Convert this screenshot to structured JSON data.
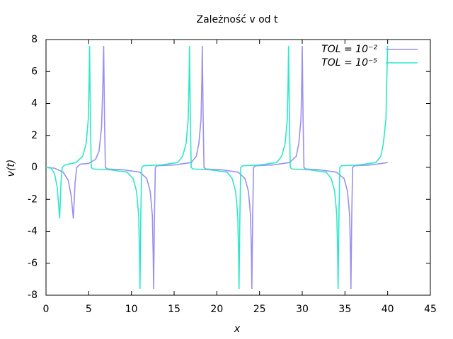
{
  "chart_data": {
    "type": "line",
    "title": "Zależność v od t",
    "xlabel": "x",
    "ylabel": "v(t)",
    "xlim": [
      0,
      45
    ],
    "ylim": [
      -8,
      8
    ],
    "xticks": [
      0,
      5,
      10,
      15,
      20,
      25,
      30,
      35,
      40,
      45
    ],
    "yticks": [
      -8,
      -6,
      -4,
      -2,
      0,
      2,
      4,
      6,
      8
    ],
    "legend": "top-right",
    "series": [
      {
        "name": "TOL = 10⁻²",
        "color": "#9b8ff0",
        "x": [
          0,
          1,
          2,
          2.6,
          2.95,
          3.2,
          3.4,
          3.6,
          4,
          5,
          5.8,
          6.2,
          6.5,
          6.65,
          6.75,
          6.85,
          6.95,
          7.2,
          9,
          11,
          11.8,
          12.2,
          12.45,
          12.55,
          12.6,
          12.7,
          12.8,
          13,
          15,
          17,
          17.6,
          17.9,
          18.15,
          18.25,
          18.3,
          18.4,
          18.5,
          18.7,
          20.5,
          22.5,
          23.3,
          23.7,
          23.95,
          24.05,
          24.1,
          24.2,
          24.3,
          24.5,
          26.5,
          28.5,
          29.3,
          29.6,
          29.85,
          29.95,
          30,
          30.1,
          30.2,
          30.4,
          32,
          34,
          34.9,
          35.3,
          35.55,
          35.65,
          35.7,
          35.8,
          35.9,
          36.1,
          38,
          40
        ],
        "values": [
          0,
          -0.05,
          -0.3,
          -0.8,
          -1.8,
          -3.2,
          -1,
          0,
          0.2,
          0.25,
          0.5,
          1,
          2.5,
          5,
          7.6,
          3,
          0,
          -0.1,
          -0.15,
          -0.3,
          -0.7,
          -1.5,
          -3,
          -5.5,
          -7.6,
          -3,
          0,
          0.1,
          0.15,
          0.3,
          0.7,
          1.5,
          3,
          5.5,
          7.6,
          3,
          0,
          -0.1,
          -0.15,
          -0.3,
          -0.7,
          -1.5,
          -3,
          -5.5,
          -7.6,
          -3,
          0,
          0.1,
          0.15,
          0.3,
          0.7,
          1.5,
          3,
          5.5,
          7.6,
          3,
          0,
          -0.1,
          -0.15,
          -0.3,
          -0.7,
          -1.5,
          -3,
          -5.5,
          -7.6,
          -3,
          0,
          0.1,
          0.15,
          0.3
        ]
      },
      {
        "name": "TOL = 10⁻⁵",
        "color": "#2de8c8",
        "x": [
          0,
          0.6,
          1,
          1.3,
          1.5,
          1.6,
          1.75,
          1.9,
          2.2,
          3.5,
          4.3,
          4.7,
          4.95,
          5.05,
          5.1,
          5.2,
          5.3,
          5.5,
          7.5,
          9.5,
          10.2,
          10.6,
          10.85,
          10.95,
          11,
          11.1,
          11.2,
          11.4,
          13.4,
          15.4,
          16,
          16.4,
          16.65,
          16.75,
          16.8,
          16.9,
          17,
          17.2,
          19.2,
          21.2,
          21.8,
          22.2,
          22.45,
          22.55,
          22.6,
          22.7,
          22.8,
          23,
          25,
          27,
          27.6,
          28,
          28.25,
          28.35,
          28.4,
          28.5,
          28.6,
          28.8,
          30.8,
          32.8,
          33.4,
          33.8,
          34.05,
          34.15,
          34.2,
          34.3,
          34.4,
          34.6,
          36.6,
          38.6,
          39.2,
          39.5,
          39.8,
          39.9,
          40
        ],
        "values": [
          0,
          -0.05,
          -0.4,
          -1.2,
          -2.5,
          -3.2,
          -1,
          0,
          0.15,
          0.3,
          0.7,
          1.5,
          3,
          5.5,
          7.6,
          3,
          0,
          -0.1,
          -0.15,
          -0.3,
          -0.7,
          -1.5,
          -3,
          -5.5,
          -7.6,
          -3,
          0,
          0.1,
          0.15,
          0.3,
          0.7,
          1.5,
          3,
          5.5,
          7.6,
          3,
          0,
          -0.1,
          -0.15,
          -0.3,
          -0.7,
          -1.5,
          -3,
          -5.5,
          -7.6,
          -3,
          0,
          0.1,
          0.15,
          0.3,
          0.7,
          1.5,
          3,
          5.5,
          7.6,
          3,
          0,
          -0.1,
          -0.15,
          -0.3,
          -0.7,
          -1.5,
          -3,
          -5.5,
          -7.6,
          -3,
          0,
          0.1,
          0.15,
          0.3,
          0.7,
          1.5,
          3,
          5.5,
          7.6
        ]
      }
    ]
  }
}
